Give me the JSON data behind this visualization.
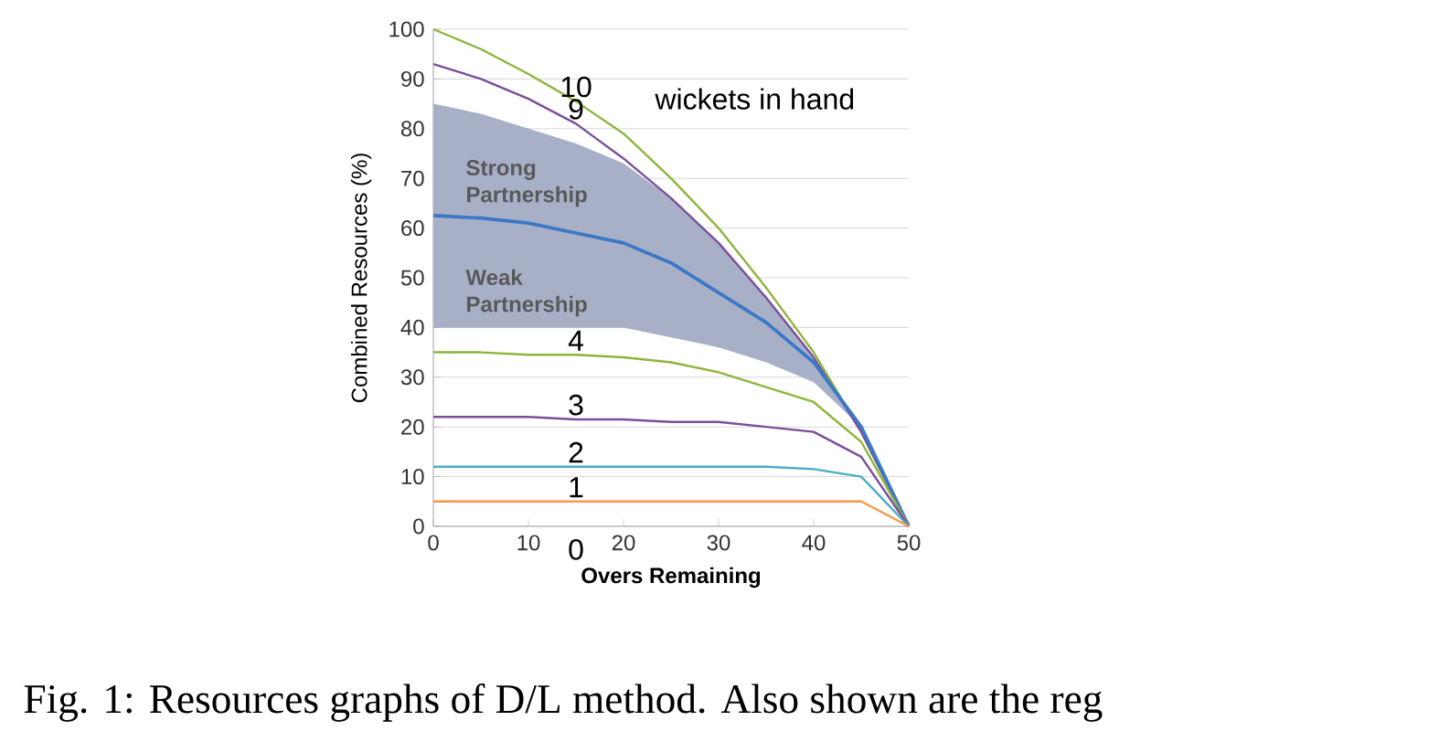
{
  "chart_data": {
    "type": "line",
    "xlabel": "Overs Remaining",
    "ylabel": "Combined Resources (%)",
    "x": [
      0,
      5,
      10,
      15,
      20,
      25,
      30,
      35,
      40,
      45,
      50
    ],
    "series": [
      {
        "name": "10",
        "color": "#8db53c",
        "values": [
          100,
          96,
          91,
          85.5,
          79,
          70,
          60,
          48,
          35,
          19,
          0
        ]
      },
      {
        "name": "9",
        "color": "#7a4f9a",
        "values": [
          93,
          90,
          86,
          81,
          74,
          66,
          57,
          46,
          34,
          19,
          0
        ]
      },
      {
        "color": "#3c78c8",
        "values": [
          62.5,
          62,
          61,
          59,
          57,
          53,
          47,
          41,
          33,
          20,
          0
        ],
        "lower": [
          40,
          40,
          40,
          40,
          40,
          38,
          36,
          33,
          29,
          20,
          0
        ],
        "upper": [
          85,
          83,
          80,
          77,
          73,
          66,
          57,
          46,
          34,
          19,
          0
        ]
      },
      {
        "name": "4",
        "color": "#8db53c",
        "values": [
          35,
          35,
          34.5,
          34.5,
          34,
          33,
          31,
          28,
          25,
          17,
          0
        ]
      },
      {
        "name": "3",
        "color": "#7a4f9a",
        "values": [
          22,
          22,
          22,
          21.5,
          21.5,
          21,
          21,
          20,
          19,
          14,
          0
        ]
      },
      {
        "name": "2",
        "color": "#4bacc6",
        "values": [
          12,
          12,
          12,
          12,
          12,
          12,
          12,
          12,
          11.5,
          10,
          0
        ]
      },
      {
        "name": "1",
        "color": "#f79646",
        "values": [
          5,
          5,
          5,
          5,
          5,
          5,
          5,
          5,
          5,
          5,
          0
        ]
      }
    ],
    "xlim": [
      0,
      50
    ],
    "xticks": [
      0,
      10,
      20,
      30,
      40,
      50
    ],
    "ylim": [
      0,
      100
    ],
    "yticks": [
      0,
      10,
      20,
      30,
      40,
      50,
      60,
      70,
      80,
      90,
      100
    ],
    "grid": "y",
    "marker": "none",
    "line_style": "solid",
    "annotations": [
      "wickets in hand",
      "Strong Partnership",
      "Weak Partnership",
      "0",
      "Fig. 1: Resources graphs of D/L method. Also shown are the reg"
    ]
  }
}
